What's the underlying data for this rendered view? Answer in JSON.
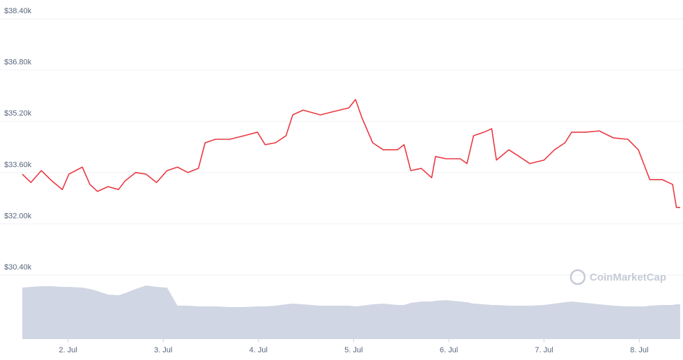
{
  "chart_data": {
    "type": "line",
    "watermark": "CoinMarketCap",
    "x": [
      1.52,
      1.61,
      1.72,
      1.83,
      1.94,
      2.01,
      2.15,
      2.23,
      2.31,
      2.42,
      2.53,
      2.6,
      2.71,
      2.82,
      2.93,
      3.04,
      3.15,
      3.26,
      3.37,
      3.44,
      3.55,
      3.7,
      3.85,
      3.99,
      4.07,
      4.18,
      4.29,
      4.36,
      4.47,
      4.65,
      4.8,
      4.95,
      5.02,
      5.09,
      5.2,
      5.31,
      5.46,
      5.53,
      5.6,
      5.71,
      5.82,
      5.86,
      5.97,
      6.12,
      6.19,
      6.26,
      6.37,
      6.45,
      6.5,
      6.63,
      6.74,
      6.85,
      7.0,
      7.11,
      7.22,
      7.29,
      7.44,
      7.58,
      7.73,
      7.88,
      7.99,
      8.06,
      8.11,
      8.24,
      8.35,
      8.39,
      8.43
    ],
    "series": [
      {
        "color": "#ea3943",
        "values": [
          33550,
          33290,
          33660,
          33340,
          33070,
          33550,
          33770,
          33230,
          33010,
          33160,
          33070,
          33340,
          33600,
          33550,
          33290,
          33660,
          33770,
          33600,
          33730,
          34530,
          34640,
          34640,
          34750,
          34860,
          34470,
          34530,
          34750,
          35400,
          35550,
          35400,
          35510,
          35620,
          35880,
          35290,
          34530,
          34310,
          34310,
          34470,
          33660,
          33730,
          33440,
          34100,
          34030,
          34030,
          33880,
          34750,
          34860,
          34970,
          33990,
          34310,
          34100,
          33880,
          33990,
          34310,
          34530,
          34860,
          34860,
          34900,
          34680,
          34640,
          34310,
          33770,
          33380,
          33380,
          33230,
          32510,
          32510
        ]
      },
      {
        "color": "#d1d6e4",
        "axis": "y2",
        "values": [
          74,
          75,
          76,
          76,
          75,
          75,
          74,
          72,
          69,
          64,
          63,
          66,
          72,
          77,
          75,
          74,
          48,
          48,
          47,
          47,
          47,
          46,
          46,
          47,
          47,
          48,
          50,
          51,
          50,
          48,
          48,
          48,
          47,
          48,
          50,
          51,
          49,
          49,
          52,
          54,
          54,
          55,
          56,
          54,
          53,
          51,
          50,
          49,
          49,
          48,
          48,
          48,
          49,
          51,
          53,
          54,
          52,
          50,
          48,
          47,
          47,
          47,
          48,
          49,
          49,
          50,
          50
        ]
      }
    ],
    "xlim": [
      1.52,
      8.43
    ],
    "xticks": [
      {
        "value": 2,
        "label": "2. Jul"
      },
      {
        "value": 3,
        "label": "3. Jul"
      },
      {
        "value": 4,
        "label": "4. Jul"
      },
      {
        "value": 5,
        "label": "5. Jul"
      },
      {
        "value": 6,
        "label": "6. Jul"
      },
      {
        "value": 7,
        "label": "7. Jul"
      },
      {
        "value": 8,
        "label": "8. Jul"
      }
    ],
    "ylim": [
      28400,
      38400
    ],
    "yticks": [
      {
        "value": 30400,
        "label": "$30.40k"
      },
      {
        "value": 32000,
        "label": "$32.00k"
      },
      {
        "value": 33600,
        "label": "$33.60k"
      },
      {
        "value": 35200,
        "label": "$35.20k"
      },
      {
        "value": 36800,
        "label": "$36.80k"
      },
      {
        "value": 38400,
        "label": "$38.40k"
      }
    ],
    "y2lim": [
      0,
      100
    ],
    "grid": true
  }
}
